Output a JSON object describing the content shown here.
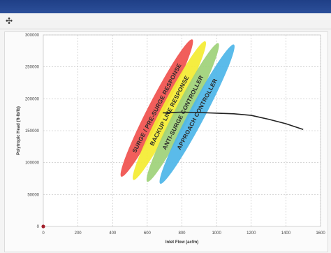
{
  "window": {
    "title_bar_color": "#25468f"
  },
  "toolbar": {
    "pin_icon": "pin-icon"
  },
  "chart_data": {
    "type": "line",
    "title": "",
    "xlabel": "Inlet Flow (acfm)",
    "ylabel": "Polytropic Head (ft-lb/lb)",
    "xlim": [
      0,
      1600
    ],
    "ylim": [
      0,
      300000
    ],
    "x_ticks": [
      "0",
      "200",
      "400",
      "600",
      "800",
      "1000",
      "1200",
      "1400",
      "1600"
    ],
    "y_ticks": [
      "0",
      "50000",
      "100000",
      "150000",
      "200000",
      "250000",
      "300000"
    ],
    "grid": true,
    "series": [
      {
        "name": "",
        "color": "#222222",
        "points": [
          [
            690,
            178000
          ],
          [
            700,
            178000
          ],
          [
            800,
            179000
          ],
          [
            900,
            178500
          ],
          [
            1000,
            177500
          ],
          [
            1100,
            176500
          ],
          [
            1200,
            174000
          ],
          [
            1300,
            168000
          ],
          [
            1400,
            161000
          ],
          [
            1500,
            152000
          ]
        ]
      }
    ],
    "bands": [
      {
        "label": "SURGE / PRE-SURGE RESPONSE",
        "color": "#f0524f",
        "from": [
          450,
          78000
        ],
        "to": [
          860,
          293000
        ]
      },
      {
        "label": "BACKUP LINE RESPONSE",
        "color": "#f4ec33",
        "from": [
          520,
          73000
        ],
        "to": [
          935,
          290000
        ]
      },
      {
        "label": "ANTI-SURGE CONTROLLER",
        "color": "#9fd27a",
        "from": [
          600,
          70000
        ],
        "to": [
          1010,
          287000
        ]
      },
      {
        "label": "APPROACH CONTROLLER",
        "color": "#4db6e8",
        "from": [
          675,
          67000
        ],
        "to": [
          1100,
          285000
        ]
      }
    ],
    "origin_marker": {
      "x": 0,
      "y": 0,
      "color": "#a3202b"
    }
  }
}
